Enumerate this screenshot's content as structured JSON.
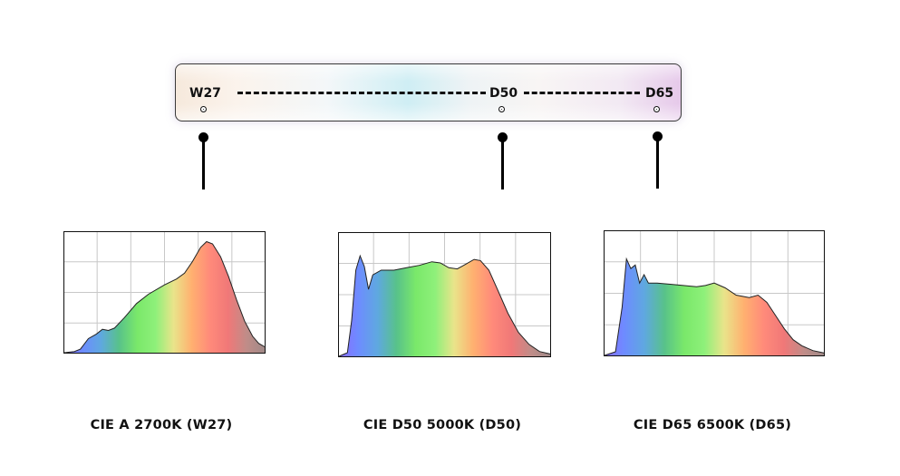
{
  "bar": {
    "labels": [
      "W27",
      "D50",
      "D65"
    ]
  },
  "charts": [
    {
      "caption": "CIE A 2700K (W27)"
    },
    {
      "caption": "CIE D50 5000K (D50)"
    },
    {
      "caption": "CIE D65 6500K (D65)"
    }
  ],
  "colors": {
    "line": "#111111",
    "grid": "#c8c8c8",
    "spectrum": [
      "#8a6bff",
      "#6d8cff",
      "#5fa8e0",
      "#58c28a",
      "#7ae86a",
      "#8ef07a",
      "#e9e48a",
      "#ffb070",
      "#ff8a7a",
      "#f07878",
      "#c08c88",
      "#a08a88"
    ]
  }
}
